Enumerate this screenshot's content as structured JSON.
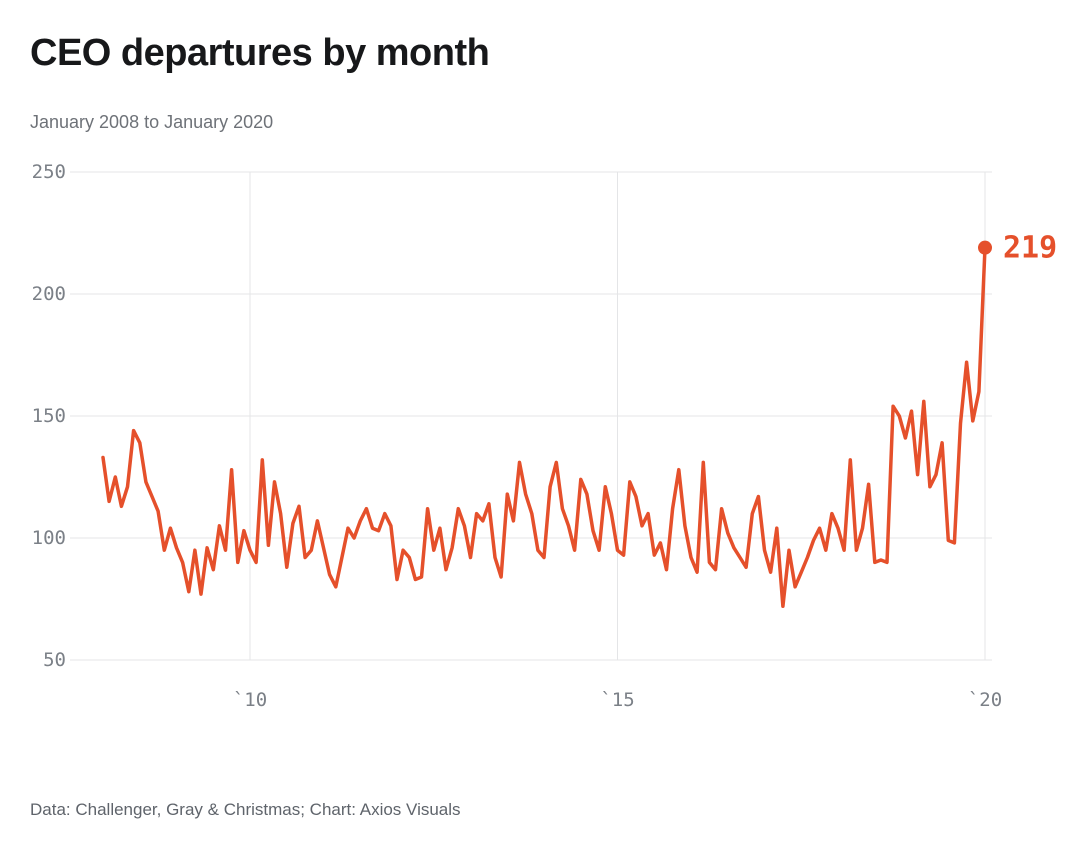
{
  "header": {
    "title": "CEO departures by month",
    "subtitle": "January 2008 to January 2020"
  },
  "footer": {
    "source": "Data: Challenger, Gray & Christmas; Chart: Axios Visuals"
  },
  "colors": {
    "line": "#e5502b",
    "grid": "#e4e5e7",
    "tick_text": "#7b8087",
    "title_text": "#17181a",
    "subtitle_text": "#6e7278"
  },
  "chart_data": {
    "type": "line",
    "title": "CEO departures by month",
    "subtitle": "January 2008 to January 2020",
    "ylabel": "",
    "xlabel": "",
    "ylim": [
      50,
      250
    ],
    "y_ticks": [
      50,
      100,
      150,
      200,
      250
    ],
    "x_ticks": [
      {
        "label": "`10",
        "month_index": 24
      },
      {
        "label": "`15",
        "month_index": 84
      },
      {
        "label": "`20",
        "month_index": 144
      }
    ],
    "x_months": {
      "start": "2008-01",
      "end": "2020-01",
      "frequency": "monthly"
    },
    "grid": true,
    "legend": "none",
    "line_color": "#e5502b",
    "end_label": "219",
    "end_value": 219,
    "values": [
      133,
      115,
      125,
      113,
      121,
      144,
      139,
      123,
      117,
      111,
      95,
      104,
      96,
      90,
      78,
      95,
      77,
      96,
      87,
      105,
      95,
      128,
      90,
      103,
      95,
      90,
      132,
      97,
      123,
      110,
      88,
      106,
      113,
      92,
      95,
      107,
      96,
      85,
      80,
      92,
      104,
      100,
      107,
      112,
      104,
      103,
      110,
      105,
      83,
      95,
      92,
      83,
      84,
      112,
      95,
      104,
      87,
      96,
      112,
      105,
      92,
      110,
      107,
      114,
      92,
      84,
      118,
      107,
      131,
      118,
      110,
      95,
      92,
      121,
      131,
      112,
      105,
      95,
      124,
      118,
      103,
      95,
      121,
      110,
      95,
      93,
      123,
      117,
      105,
      110,
      93,
      98,
      87,
      112,
      128,
      105,
      92,
      86,
      131,
      90,
      87,
      112,
      102,
      96,
      92,
      88,
      110,
      117,
      95,
      86,
      104,
      72,
      95,
      80,
      86,
      92,
      99,
      104,
      95,
      110,
      104,
      95,
      132,
      95,
      104,
      122,
      90,
      91,
      90,
      154,
      150,
      141,
      152,
      126,
      156,
      121,
      126,
      139,
      99,
      98,
      147,
      172,
      148,
      160,
      219
    ]
  }
}
